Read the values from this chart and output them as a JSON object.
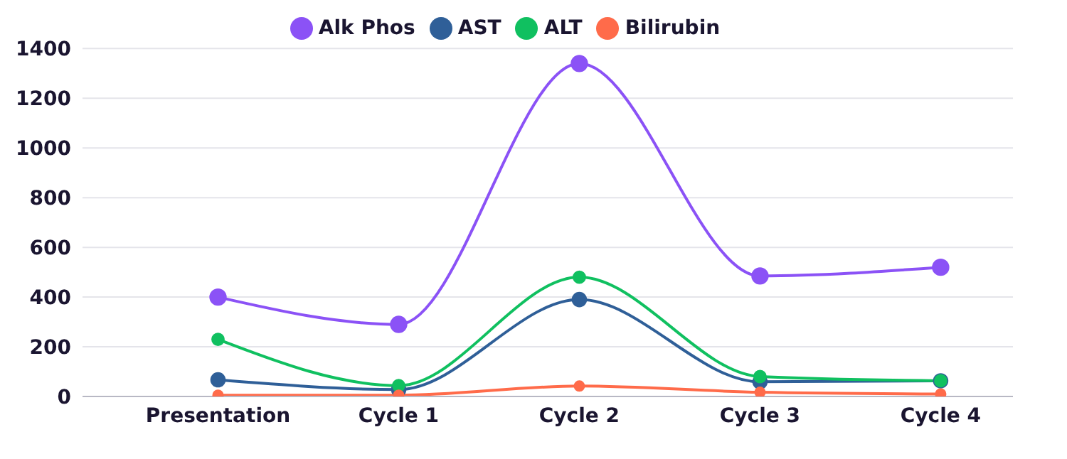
{
  "chart_data": {
    "type": "line",
    "categories": [
      "Presentation",
      "Cycle 1",
      "Cycle 2",
      "Cycle 3",
      "Cycle 4"
    ],
    "series": [
      {
        "name": "Alk Phos",
        "color": "#8b52f6",
        "values": [
          400,
          290,
          1340,
          485,
          520
        ]
      },
      {
        "name": "AST",
        "color": "#2f5f98",
        "values": [
          67,
          28,
          390,
          59,
          63
        ]
      },
      {
        "name": "ALT",
        "color": "#10c060",
        "values": [
          230,
          44,
          480,
          80,
          63
        ]
      },
      {
        "name": "Bilirubin",
        "color": "#ff6b4a",
        "values": [
          5,
          5,
          42,
          17,
          10
        ]
      }
    ],
    "ylim": [
      0,
      1400
    ],
    "yticks": [
      0,
      200,
      400,
      600,
      800,
      1000,
      1200,
      1400
    ],
    "grid": "y",
    "legend": "top",
    "marker": "circle",
    "line_style": "solid"
  }
}
